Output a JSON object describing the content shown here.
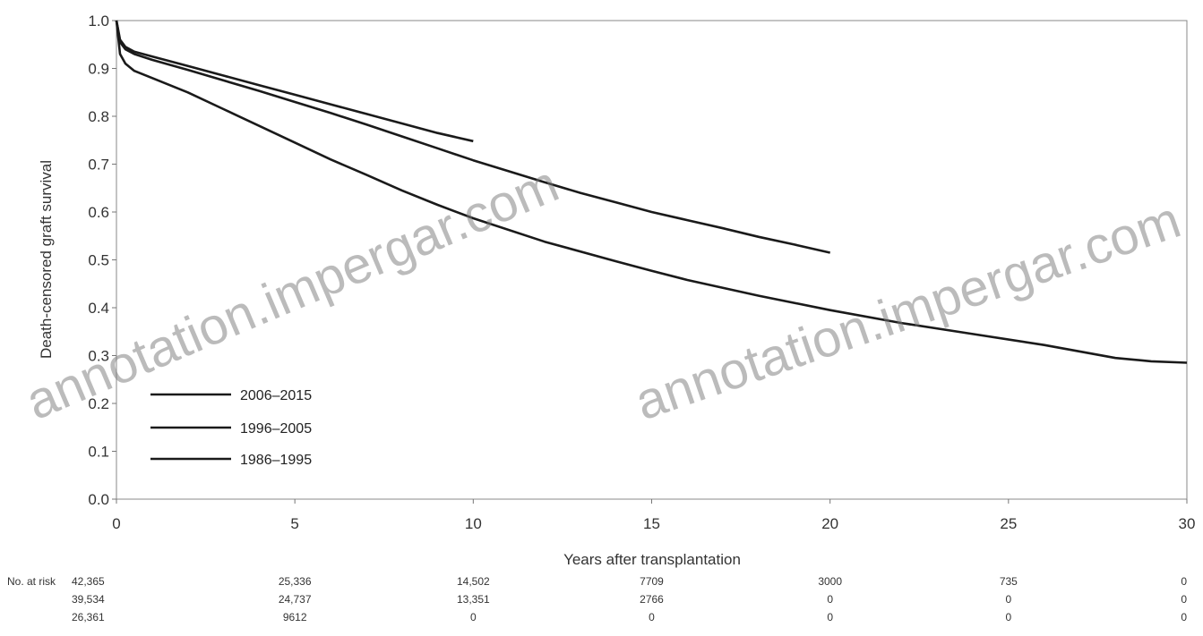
{
  "chart_data": {
    "type": "line",
    "title": "",
    "xlabel": "Years after transplantation",
    "ylabel": "Death-censored graft survival",
    "xlim": [
      0,
      30
    ],
    "ylim": [
      0.0,
      1.0
    ],
    "x_ticks": [
      "0",
      "5",
      "10",
      "15",
      "20",
      "25",
      "30"
    ],
    "y_ticks": [
      "0.0",
      "0.1",
      "0.2",
      "0.3",
      "0.4",
      "0.5",
      "0.6",
      "0.7",
      "0.8",
      "0.9",
      "1.0"
    ],
    "grid": false,
    "legend_position": "bottom-left",
    "series": [
      {
        "name": "2006–2015",
        "color": "#1a1a1a",
        "points": [
          [
            0,
            1.0
          ],
          [
            0.1,
            0.96
          ],
          [
            0.25,
            0.945
          ],
          [
            0.5,
            0.935
          ],
          [
            1,
            0.925
          ],
          [
            2,
            0.905
          ],
          [
            3,
            0.885
          ],
          [
            4,
            0.865
          ],
          [
            5,
            0.845
          ],
          [
            6,
            0.825
          ],
          [
            7,
            0.805
          ],
          [
            8,
            0.785
          ],
          [
            9,
            0.765
          ],
          [
            10,
            0.748
          ]
        ]
      },
      {
        "name": "1996–2005",
        "color": "#1a1a1a",
        "points": [
          [
            0,
            1.0
          ],
          [
            0.1,
            0.955
          ],
          [
            0.25,
            0.94
          ],
          [
            0.5,
            0.93
          ],
          [
            1,
            0.918
          ],
          [
            2,
            0.897
          ],
          [
            3,
            0.875
          ],
          [
            4,
            0.853
          ],
          [
            5,
            0.83
          ],
          [
            6,
            0.807
          ],
          [
            7,
            0.783
          ],
          [
            8,
            0.758
          ],
          [
            9,
            0.733
          ],
          [
            10,
            0.708
          ],
          [
            11,
            0.685
          ],
          [
            12,
            0.662
          ],
          [
            13,
            0.64
          ],
          [
            14,
            0.62
          ],
          [
            15,
            0.6
          ],
          [
            16,
            0.583
          ],
          [
            17,
            0.566
          ],
          [
            18,
            0.548
          ],
          [
            19,
            0.532
          ],
          [
            20,
            0.515
          ]
        ]
      },
      {
        "name": "1986–1995",
        "color": "#1a1a1a",
        "points": [
          [
            0,
            1.0
          ],
          [
            0.1,
            0.93
          ],
          [
            0.25,
            0.91
          ],
          [
            0.5,
            0.895
          ],
          [
            1,
            0.88
          ],
          [
            2,
            0.85
          ],
          [
            3,
            0.815
          ],
          [
            4,
            0.78
          ],
          [
            5,
            0.745
          ],
          [
            6,
            0.71
          ],
          [
            7,
            0.678
          ],
          [
            8,
            0.645
          ],
          [
            9,
            0.615
          ],
          [
            10,
            0.587
          ],
          [
            12,
            0.538
          ],
          [
            14,
            0.497
          ],
          [
            15,
            0.477
          ],
          [
            16,
            0.458
          ],
          [
            18,
            0.425
          ],
          [
            20,
            0.395
          ],
          [
            22,
            0.368
          ],
          [
            24,
            0.345
          ],
          [
            26,
            0.322
          ],
          [
            28,
            0.295
          ],
          [
            29,
            0.288
          ],
          [
            30,
            0.285
          ]
        ]
      }
    ],
    "number_at_risk": {
      "label": "No. at risk",
      "rows": [
        {
          "color": "#c83232",
          "values": [
            "42,365",
            "25,336",
            "14,502",
            "7709",
            "3000",
            "735",
            "0"
          ]
        },
        {
          "color": "#2a8a5a",
          "values": [
            "39,534",
            "24,737",
            "13,351",
            "2766",
            "0",
            "0",
            "0"
          ]
        },
        {
          "color": "#2a2aa0",
          "values": [
            "26,361",
            "9612",
            "0",
            "0",
            "0",
            "0",
            "0"
          ]
        }
      ]
    },
    "watermark": "annotation.impergar.com"
  }
}
